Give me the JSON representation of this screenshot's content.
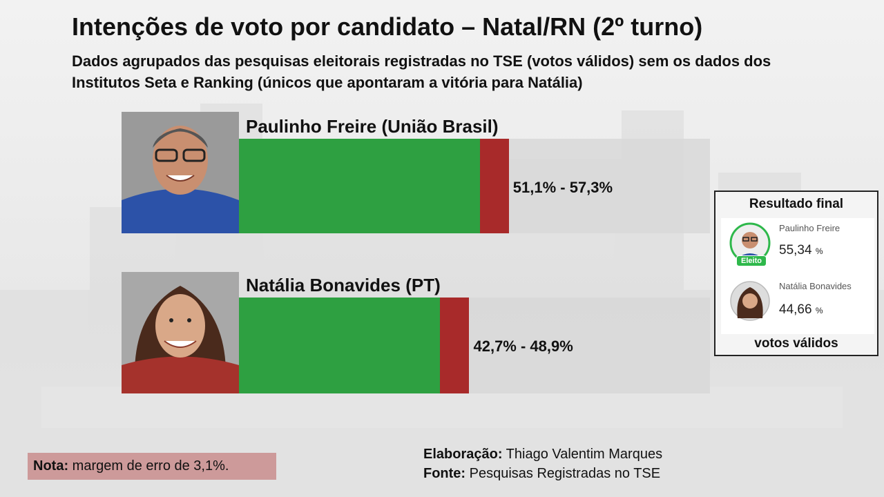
{
  "title": "Intenções de voto por candidato – Natal/RN (2º turno)",
  "subtitle": "Dados agrupados das pesquisas eleitorais registradas no TSE (votos válidos) sem os dados dos Institutos Seta e Ranking (únicos que apontaram a vitória para Natália)",
  "chart_data": {
    "type": "bar",
    "orientation": "horizontal",
    "title": "Intenções de voto por candidato – Natal/RN (2º turno)",
    "categories": [
      "Paulinho Freire (União Brasil)",
      "Natália Bonavides (PT)"
    ],
    "ranges": [
      {
        "low": 51.1,
        "high": 57.3,
        "label": "51,1% - 57,3%"
      },
      {
        "low": 42.7,
        "high": 48.9,
        "label": "42,7% - 48,9%"
      }
    ],
    "xlim": [
      0,
      100
    ],
    "colors": {
      "base": "#2ea041",
      "range": "#a82a2a",
      "track": "#d7d7d7"
    }
  },
  "candidates": [
    {
      "name": "Paulinho Freire (União Brasil)",
      "range_label": "51,1% - 57,3%"
    },
    {
      "name": "Natália Bonavides (PT)",
      "range_label": "42,7% - 48,9%"
    }
  ],
  "result": {
    "title": "Resultado final",
    "footer": "votos válidos",
    "elected_badge": "Eleito",
    "entries": [
      {
        "name": "Paulinho Freire",
        "pct": "55,34",
        "unit": "%"
      },
      {
        "name": "Natália Bonavides",
        "pct": "44,66",
        "unit": "%"
      }
    ]
  },
  "note": {
    "label": "Nota:",
    "text": " margem de erro de 3,1%."
  },
  "credits": {
    "elab_label": "Elaboração:",
    "elab_text": " Thiago Valentim Marques",
    "source_label": "Fonte:",
    "source_text": " Pesquisas Registradas no TSE"
  }
}
